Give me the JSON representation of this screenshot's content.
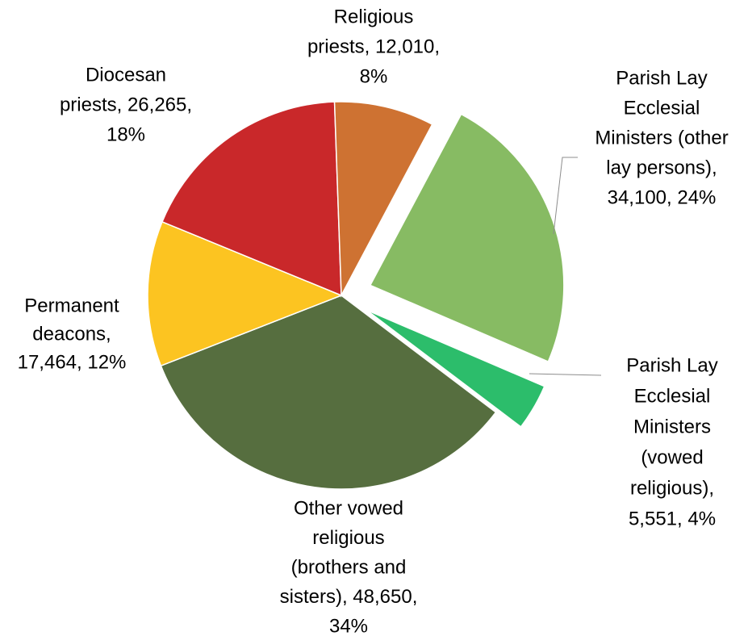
{
  "chart_data": {
    "type": "pie",
    "title": "",
    "slices": [
      {
        "label": "Parish Lay Ecclesial Ministers (other lay persons)",
        "value": 34100,
        "percent": "24%",
        "display": [
          "Parish Lay",
          "Ecclesial",
          "Ministers (other",
          "lay persons),",
          "34,100, 24%"
        ],
        "color": "#87bb63",
        "exploded": true
      },
      {
        "label": "Parish Lay Ecclesial Ministers (vowed religious)",
        "value": 5551,
        "percent": "4%",
        "display": [
          "Parish Lay",
          "Ecclesial",
          "Ministers",
          "(vowed",
          "religious),",
          "5,551, 4%"
        ],
        "color": "#2cbd6b",
        "exploded": true
      },
      {
        "label": "Other vowed religious (brothers and sisters)",
        "value": 48650,
        "percent": "34%",
        "display": [
          "Other vowed",
          "religious",
          "(brothers and",
          "sisters), 48,650,",
          "34%"
        ],
        "color": "#566e3f",
        "exploded": false
      },
      {
        "label": "Permanent deacons",
        "value": 17464,
        "percent": "12%",
        "display": [
          "Permanent",
          "deacons,",
          "17,464, 12%"
        ],
        "color": "#fcc421",
        "exploded": false
      },
      {
        "label": "Diocesan priests",
        "value": 26265,
        "percent": "18%",
        "display": [
          "Diocesan",
          "priests, 26,265,",
          "18%"
        ],
        "color": "#c9282a",
        "exploded": false
      },
      {
        "label": "Religious priests",
        "value": 12010,
        "percent": "8%",
        "display": [
          "Religious",
          "priests, 12,010,",
          "8%"
        ],
        "color": "#ce7232",
        "exploded": false
      }
    ]
  }
}
